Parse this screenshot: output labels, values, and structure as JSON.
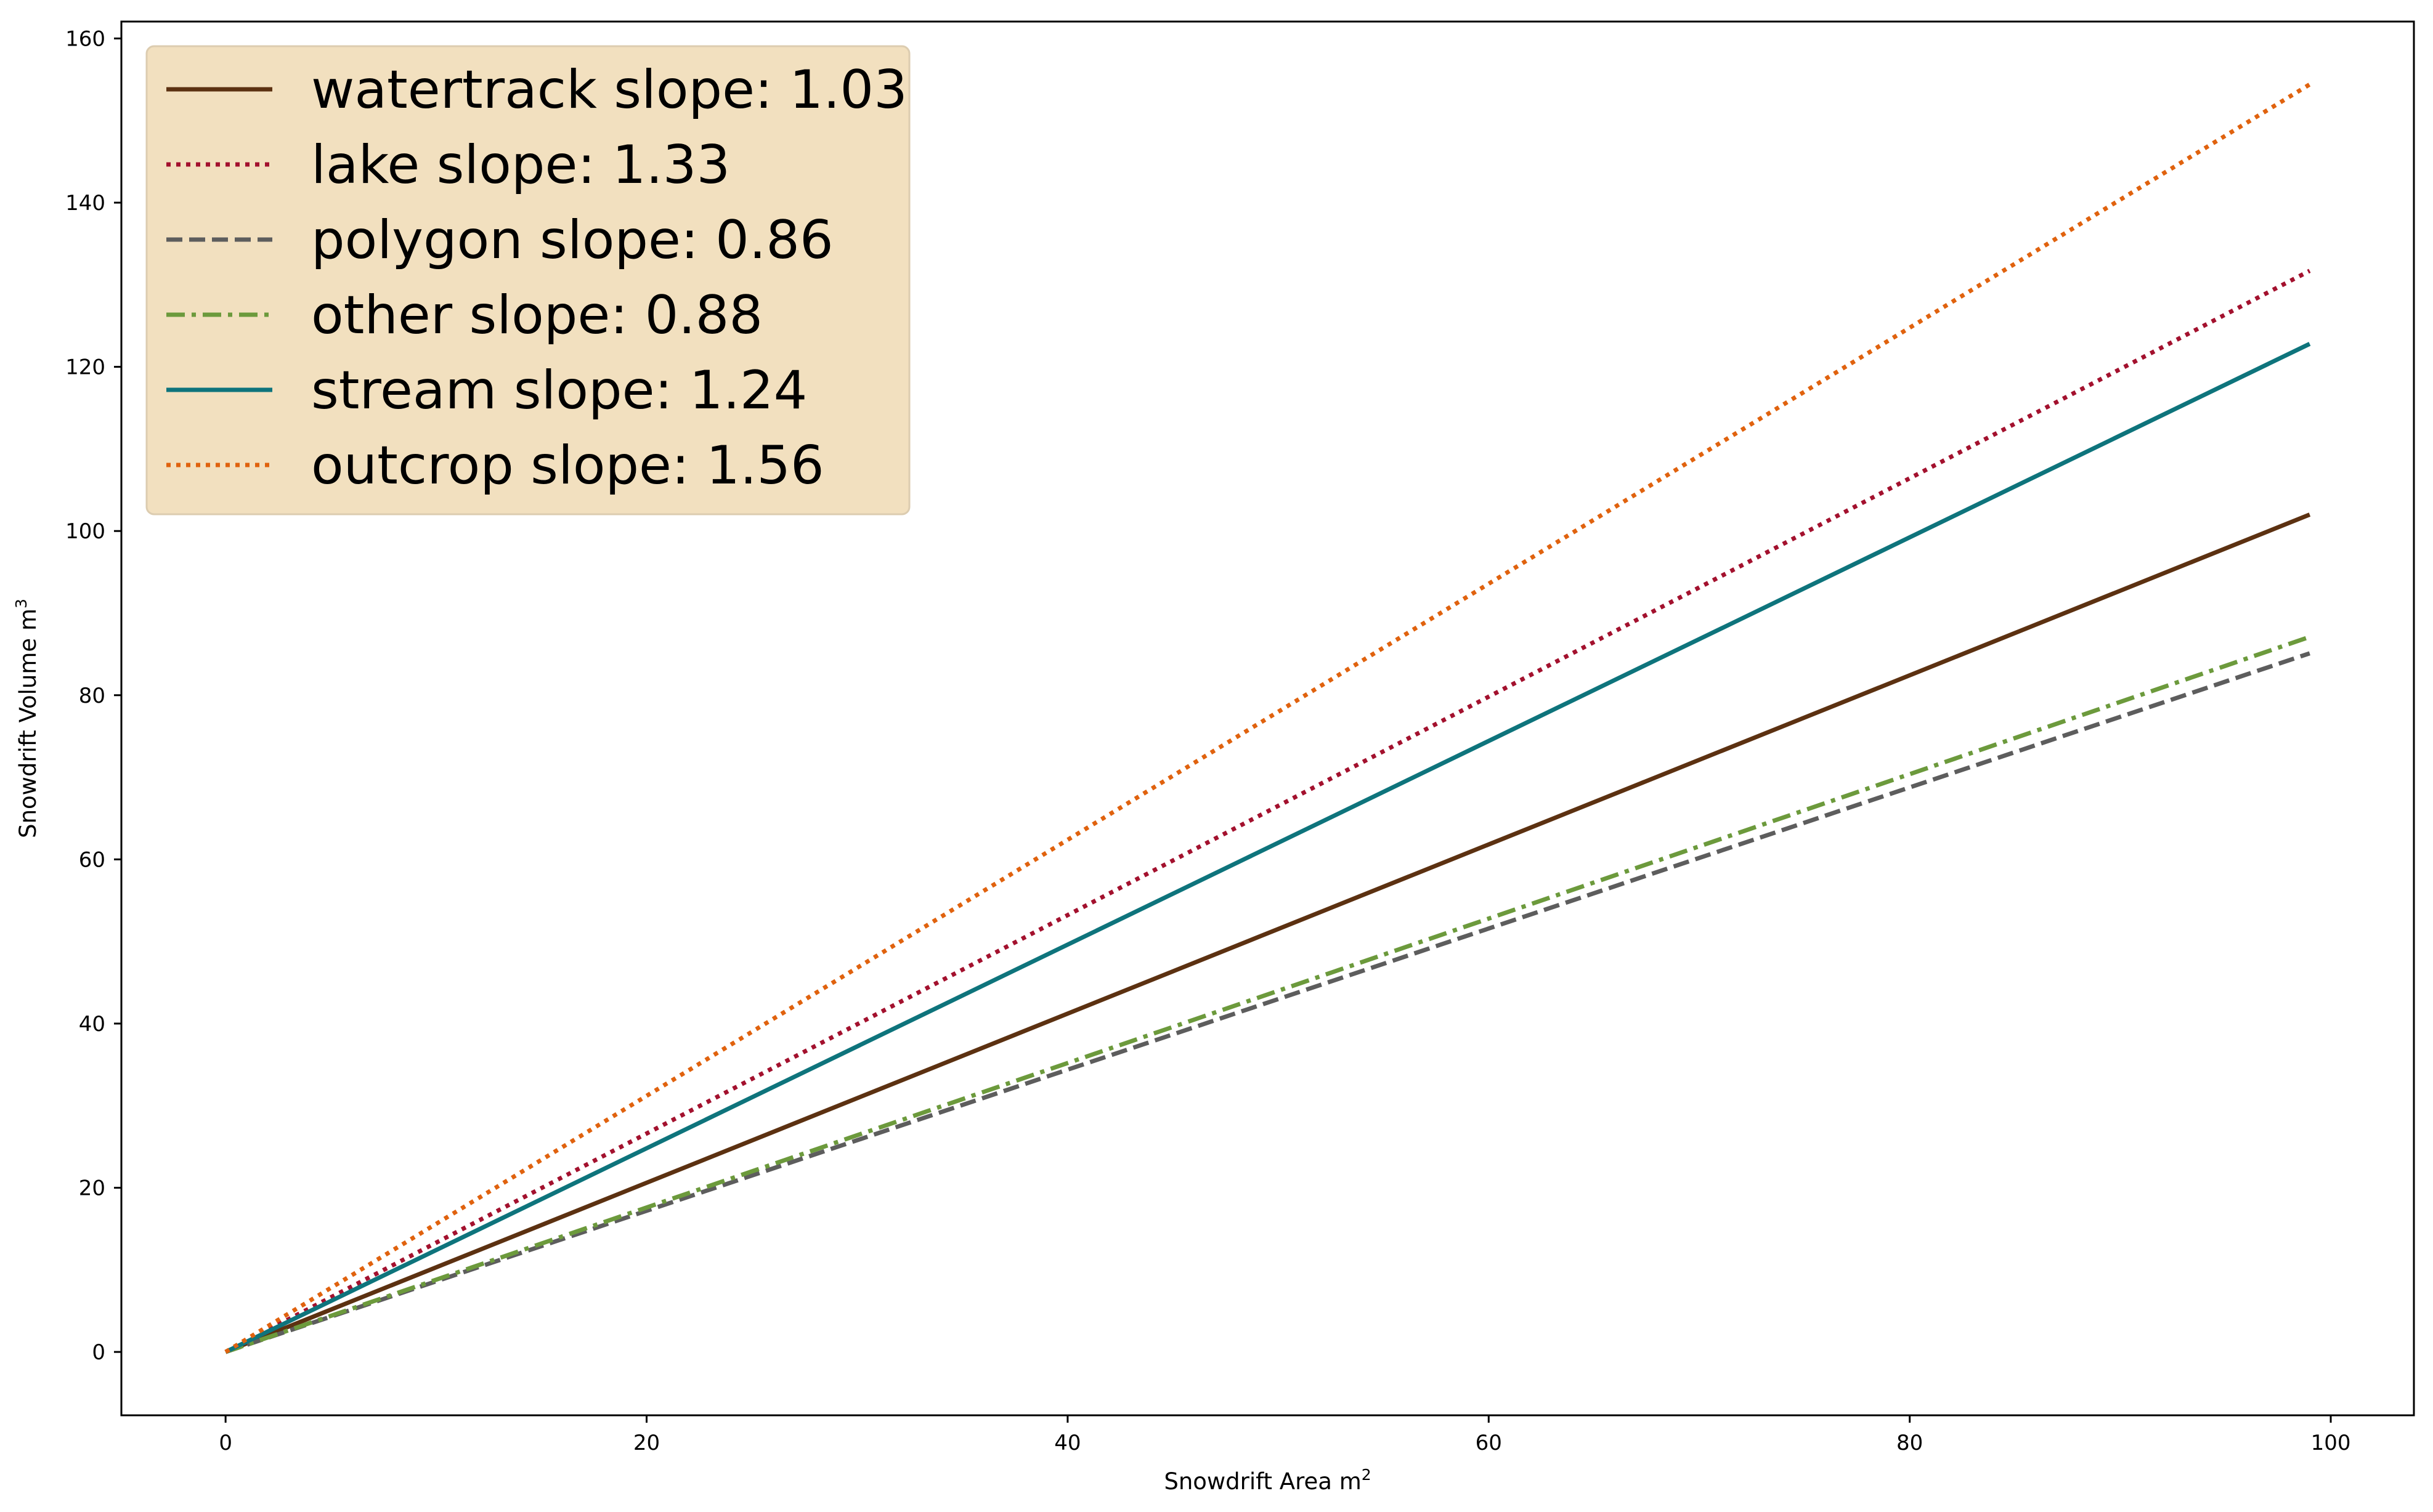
{
  "chart_data": {
    "type": "line",
    "xlabel": "Snowdrift Area m",
    "xlabel_sup": "2",
    "ylabel": "Snowdrift Volume m",
    "ylabel_sup": "3",
    "xlim": [
      -4.95,
      103.95
    ],
    "ylim": [
      -7.72,
      162.06
    ],
    "xticks": [
      0,
      20,
      40,
      60,
      80,
      100
    ],
    "yticks": [
      0,
      20,
      40,
      60,
      80,
      100,
      120,
      140,
      160
    ],
    "grid": false,
    "legend_position": "top-left",
    "series": [
      {
        "name": "watertrack slope: 1.03",
        "slope": 1.03,
        "x": [
          0,
          99
        ],
        "y": [
          0,
          102.0
        ],
        "color": "#5c3111",
        "dash": "solid"
      },
      {
        "name": "lake slope: 1.33",
        "slope": 1.33,
        "x": [
          0,
          99
        ],
        "y": [
          0,
          131.7
        ],
        "color": "#a3112e",
        "dash": "dotted"
      },
      {
        "name": "polygon slope: 0.86",
        "slope": 0.86,
        "x": [
          0,
          99
        ],
        "y": [
          0,
          85.1
        ],
        "color": "#5d5d5d",
        "dash": "dashed"
      },
      {
        "name": "other slope: 0.88",
        "slope": 0.88,
        "x": [
          0,
          99
        ],
        "y": [
          0,
          87.1
        ],
        "color": "#6c9a3c",
        "dash": "dashdot"
      },
      {
        "name": "stream slope: 1.24",
        "slope": 1.24,
        "x": [
          0,
          99
        ],
        "y": [
          0,
          122.8
        ],
        "color": "#0e747c",
        "dash": "solid"
      },
      {
        "name": "outcrop slope: 1.56",
        "slope": 1.56,
        "x": [
          0,
          99
        ],
        "y": [
          0,
          154.4
        ],
        "color": "#e0620e",
        "dash": "dotted"
      }
    ],
    "legend": {
      "background": "#f2e0bf",
      "border": "#dcccb0"
    }
  }
}
